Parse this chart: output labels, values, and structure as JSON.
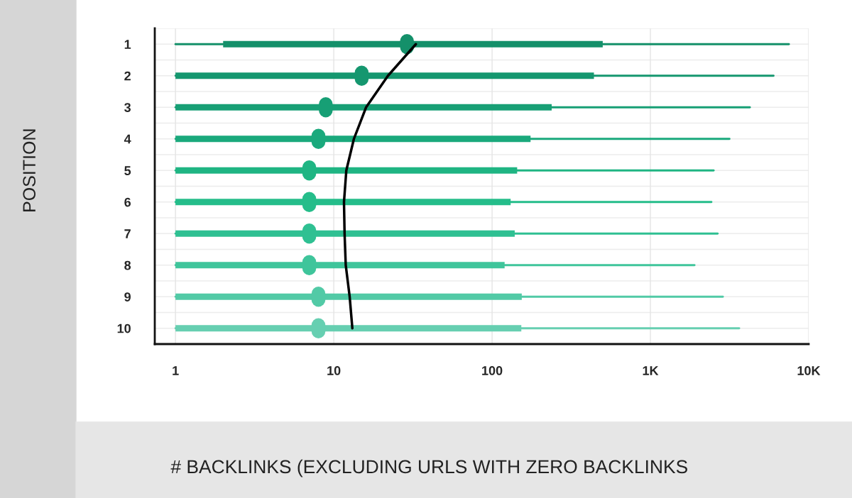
{
  "chart_data": {
    "type": "box",
    "orientation": "horizontal",
    "xlabel": "# BACKLINKS (EXCLUDING URLS WITH ZERO BACKLINKS",
    "ylabel": "POSITION",
    "categories": [
      "1",
      "2",
      "3",
      "4",
      "5",
      "6",
      "7",
      "8",
      "9",
      "10"
    ],
    "boxes": [
      {
        "low": 1,
        "q1": 2,
        "median": 29,
        "q3": 500,
        "high": 7500
      },
      {
        "low": 1,
        "q1": 1,
        "median": 15,
        "q3": 440,
        "high": 6000
      },
      {
        "low": 1,
        "q1": 1,
        "median": 8.9,
        "q3": 238,
        "high": 4250
      },
      {
        "low": 1,
        "q1": 1,
        "median": 8,
        "q3": 175,
        "high": 3160
      },
      {
        "low": 1,
        "q1": 1,
        "median": 7,
        "q3": 144,
        "high": 2510
      },
      {
        "low": 1,
        "q1": 1,
        "median": 7,
        "q3": 131,
        "high": 2430
      },
      {
        "low": 1,
        "q1": 1,
        "median": 7,
        "q3": 139,
        "high": 2660
      },
      {
        "low": 1,
        "q1": 1,
        "median": 7,
        "q3": 120,
        "high": 1900
      },
      {
        "low": 1,
        "q1": 1,
        "median": 8,
        "q3": 154,
        "high": 2870
      },
      {
        "low": 1,
        "q1": 1,
        "median": 8,
        "q3": 153,
        "high": 3640
      }
    ],
    "colors": [
      "#14906a",
      "#15976f",
      "#179f75",
      "#1aa97c",
      "#1fb583",
      "#25bd8a",
      "#2fc092",
      "#3fc59b",
      "#52caa6",
      "#66cfb1"
    ],
    "series": [
      {
        "type": "line",
        "color": "#000000",
        "values": [
          33,
          22,
          16,
          13.4,
          12,
          11.6,
          11.7,
          11.9,
          12.6,
          13.1
        ]
      }
    ],
    "log": "x",
    "xlim": [
      0.74,
      10000
    ],
    "xticks": [
      1,
      10,
      100,
      {
        "value": 1000,
        "label": "1K"
      },
      {
        "value": 10000,
        "label": "10K"
      }
    ],
    "grid": true
  }
}
